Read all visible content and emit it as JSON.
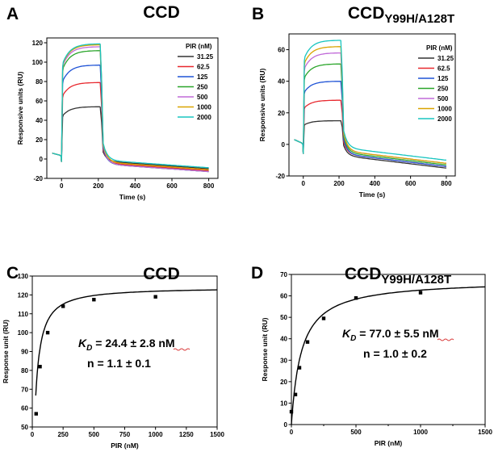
{
  "chart_data": [
    {
      "panel": "A",
      "type": "line",
      "title": "CCD",
      "xlabel": "Time (s)",
      "ylabel": "Responsive units (RU)",
      "xlim": [
        -80,
        850
      ],
      "ylim": [
        -20,
        125
      ],
      "xticks": [
        0,
        200,
        400,
        600,
        800
      ],
      "yticks": [
        -20,
        0,
        20,
        40,
        60,
        80,
        100,
        120
      ],
      "legend_title": "PIR (nM)",
      "legend_position": "right",
      "baseline": 6,
      "assoc_start": 0,
      "dissoc_start": 210,
      "x_end": 800,
      "series": [
        {
          "name": "31.25",
          "color": "#333333",
          "plateau": 54,
          "end": -10
        },
        {
          "name": "62.5",
          "color": "#e8292f",
          "plateau": 79,
          "end": -12
        },
        {
          "name": "125",
          "color": "#1f53d6",
          "plateau": 97,
          "end": -13
        },
        {
          "name": "250",
          "color": "#2aa52a",
          "plateau": 112,
          "end": -13
        },
        {
          "name": "500",
          "color": "#c06ad8",
          "plateau": 116,
          "end": -13
        },
        {
          "name": "1000",
          "color": "#d9a400",
          "plateau": 118,
          "end": -11
        },
        {
          "name": "2000",
          "color": "#19c5c0",
          "plateau": 119,
          "end": -9
        }
      ]
    },
    {
      "panel": "B",
      "type": "line",
      "title": "CCD",
      "title_subscript": "Y99H/A128T",
      "xlabel": "Time (s)",
      "ylabel": "Responsive units (RU)",
      "xlim": [
        -80,
        850
      ],
      "ylim": [
        -20,
        70
      ],
      "xticks": [
        0,
        200,
        400,
        600,
        800
      ],
      "yticks": [
        -20,
        0,
        20,
        40,
        60
      ],
      "legend_title": "PIR (nM)",
      "legend_position": "right",
      "baseline": 3,
      "assoc_start": 0,
      "dissoc_start": 210,
      "x_end": 800,
      "series": [
        {
          "name": "31.25",
          "color": "#333333",
          "plateau": 15,
          "end": -15
        },
        {
          "name": "62.5",
          "color": "#e8292f",
          "plateau": 28,
          "end": -14
        },
        {
          "name": "125",
          "color": "#1f53d6",
          "plateau": 40,
          "end": -14
        },
        {
          "name": "250",
          "color": "#2aa52a",
          "plateau": 51,
          "end": -13
        },
        {
          "name": "500",
          "color": "#c06ad8",
          "plateau": 58,
          "end": -12
        },
        {
          "name": "1000",
          "color": "#d9a400",
          "plateau": 62,
          "end": -12
        },
        {
          "name": "2000",
          "color": "#19c5c0",
          "plateau": 66,
          "end": -10
        }
      ]
    },
    {
      "panel": "C",
      "type": "scatter",
      "title": "CCD",
      "xlabel": "PIR (nM)",
      "ylabel": "Response unit (RU)",
      "xlim": [
        0,
        1500
      ],
      "ylim": [
        50,
        130
      ],
      "xticks": [
        0,
        250,
        500,
        750,
        1000,
        1250,
        1500
      ],
      "yticks": [
        50,
        60,
        70,
        80,
        90,
        100,
        110,
        120,
        130
      ],
      "points": [
        {
          "x": 31.25,
          "y": 57
        },
        {
          "x": 62.5,
          "y": 82
        },
        {
          "x": 125,
          "y": 100
        },
        {
          "x": 250,
          "y": 114
        },
        {
          "x": 500,
          "y": 117.5
        },
        {
          "x": 1000,
          "y": 119
        }
      ],
      "fit": {
        "model": "hill",
        "kd": 24.4,
        "n": 1.1,
        "rmax": 124,
        "x_from": 28
      },
      "kd_symbol": "K",
      "kd_subscript": "D",
      "kd_text": " = 24.4 ± 2.8 nM",
      "n_text": "n = 1.1 ± 0.1"
    },
    {
      "panel": "D",
      "type": "scatter",
      "title": "CCD",
      "title_subscript": "Y99H/A128T",
      "xlabel": "PIR (nM)",
      "ylabel": "Response unit (RU)",
      "xlim": [
        0,
        1500
      ],
      "ylim": [
        0,
        70
      ],
      "xticks": [
        0,
        500,
        1000,
        1500
      ],
      "minor_xticks": [
        250,
        750,
        1250
      ],
      "yticks": [
        0,
        10,
        20,
        30,
        40,
        50,
        60,
        70
      ],
      "points": [
        {
          "x": 0,
          "y": 6
        },
        {
          "x": 31.25,
          "y": 14
        },
        {
          "x": 62.5,
          "y": 26.5
        },
        {
          "x": 125,
          "y": 38.5
        },
        {
          "x": 250,
          "y": 49.5
        },
        {
          "x": 500,
          "y": 59
        },
        {
          "x": 1000,
          "y": 61.5
        }
      ],
      "fit": {
        "model": "hill",
        "kd": 77.0,
        "n": 1.0,
        "rmax": 67.5,
        "x_from": 0
      },
      "kd_symbol": "K",
      "kd_subscript": "D",
      "kd_text": " = 77.0 ± 5.5 nM",
      "n_text": "n = 1.0 ± 0.2"
    }
  ],
  "colors": {
    "axis": "#000000",
    "fit_line": "#000000",
    "marker": "#000000",
    "annotation_underline": "#d93a3a"
  }
}
